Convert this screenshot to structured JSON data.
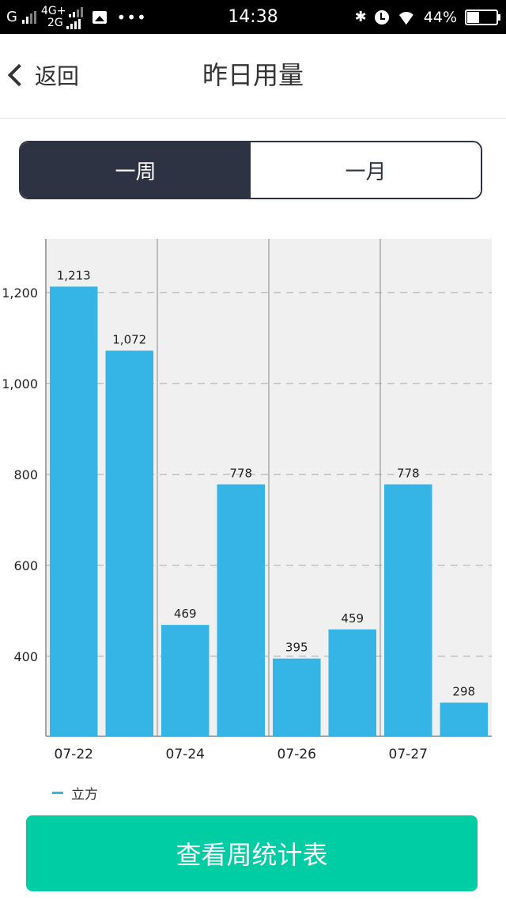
{
  "status_bar": {
    "network1": "G",
    "network2_top": "4G+",
    "network2_bottom": "2G",
    "time": "14:38",
    "battery_percent": "44%",
    "battery_level": 0.44
  },
  "nav": {
    "back_label": "返回",
    "title": "昨日用量"
  },
  "segment": {
    "week_label": "一周",
    "month_label": "一月",
    "selected": "week"
  },
  "chart_data": {
    "type": "bar",
    "title": "",
    "xlabel": "",
    "ylabel": "",
    "categories": [
      "07-22",
      "",
      "07-24",
      "",
      "07-26",
      "",
      "07-27",
      ""
    ],
    "x_tick_labels": [
      "07-22",
      "07-24",
      "07-26",
      "07-27"
    ],
    "series": [
      {
        "name": "立方",
        "values": [
          1213,
          1072,
          469,
          778,
          395,
          459,
          778,
          298
        ],
        "color": "#35b5e5"
      }
    ],
    "data_labels": [
      "1,213",
      "1,072",
      "469",
      "778",
      "395",
      "459",
      "778",
      "298"
    ],
    "ylim": [
      224,
      1318
    ],
    "y_ticks": [
      400,
      600,
      800,
      1000,
      1200
    ],
    "y_tick_labels": [
      "400",
      "600",
      "800",
      "1,000",
      "1,200"
    ],
    "grid": true,
    "legend": "bottom-left"
  },
  "legend": {
    "label": "立方"
  },
  "button": {
    "label": "查看周统计表"
  },
  "colors": {
    "accent": "#35b5e5",
    "dark": "#2e3344",
    "cta": "#00cda3",
    "plot_bg": "#f0f0f0"
  }
}
